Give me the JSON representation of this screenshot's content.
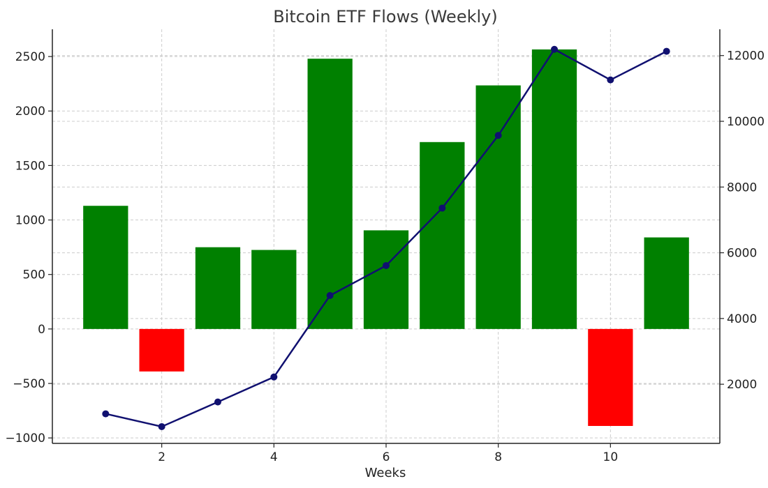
{
  "chart_data": {
    "type": "bar",
    "title": "Bitcoin ETF Flows (Weekly)",
    "xlabel": "Weeks",
    "ylabel": "",
    "y2label": "",
    "x": [
      1,
      2,
      3,
      4,
      5,
      6,
      7,
      8,
      9,
      10,
      11
    ],
    "xticks": [
      "2",
      "4",
      "6",
      "8",
      "10"
    ],
    "xtick_values": [
      2,
      4,
      6,
      8,
      10
    ],
    "xlim": [
      0.05,
      11.95
    ],
    "ylim": [
      -1050,
      2750
    ],
    "yticks": [
      "−1000",
      "−500",
      "0",
      "500",
      "1000",
      "1500",
      "2000",
      "2500"
    ],
    "ytick_values": [
      -1000,
      -500,
      0,
      500,
      1000,
      1500,
      2000,
      2500
    ],
    "y2lim": [
      200,
      12800
    ],
    "y2ticks": [
      "2000",
      "4000",
      "6000",
      "8000",
      "10000",
      "12000"
    ],
    "y2tick_values": [
      2000,
      4000,
      6000,
      8000,
      10000,
      12000
    ],
    "grid": true,
    "series": [
      {
        "type": "bar",
        "axis": "left",
        "values": [
          1130,
          -390,
          750,
          725,
          2480,
          905,
          1715,
          2235,
          2565,
          -890,
          840
        ],
        "positive_color": "#008000",
        "negative_color": "#ff0000"
      },
      {
        "type": "line",
        "axis": "right",
        "values": [
          1100,
          710,
          1460,
          2220,
          4700,
          5610,
          7360,
          9570,
          12190,
          11260,
          12130
        ],
        "color": "#101070",
        "marker": "circle"
      }
    ]
  }
}
